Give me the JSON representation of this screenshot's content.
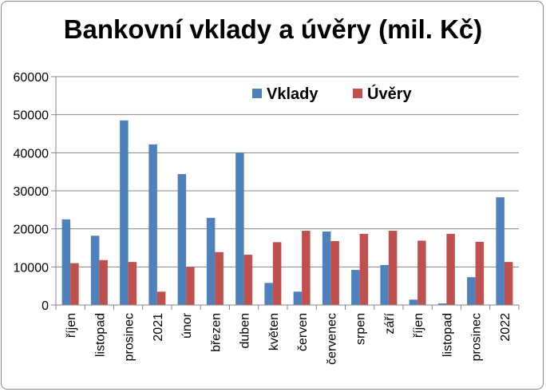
{
  "chart_data": {
    "type": "bar",
    "title": "Bankovní vklady a úvěry (mil. Kč)",
    "categories": [
      "říjen",
      "listopad",
      "prosinec",
      "2021",
      "únor",
      "březen",
      "duben",
      "květen",
      "červen",
      "červenec",
      "srpen",
      "září",
      "říjen",
      "listopad",
      "prosinec",
      "2022"
    ],
    "series": [
      {
        "name": "Vklady",
        "color": "#4F81BD",
        "values": [
          22500,
          18200,
          48500,
          42200,
          34400,
          22900,
          40000,
          5800,
          3500,
          19300,
          9200,
          10500,
          1400,
          400,
          7300,
          28300
        ]
      },
      {
        "name": "Úvěry",
        "color": "#C0504D",
        "values": [
          11000,
          11800,
          11300,
          3500,
          10000,
          13900,
          13200,
          16500,
          19500,
          16800,
          18700,
          19500,
          16900,
          18700,
          16600,
          11300
        ]
      }
    ],
    "ylim": [
      0,
      60000
    ],
    "yticks": [
      0,
      10000,
      20000,
      30000,
      40000,
      50000,
      60000
    ],
    "grid": true,
    "legend": "top-right"
  }
}
